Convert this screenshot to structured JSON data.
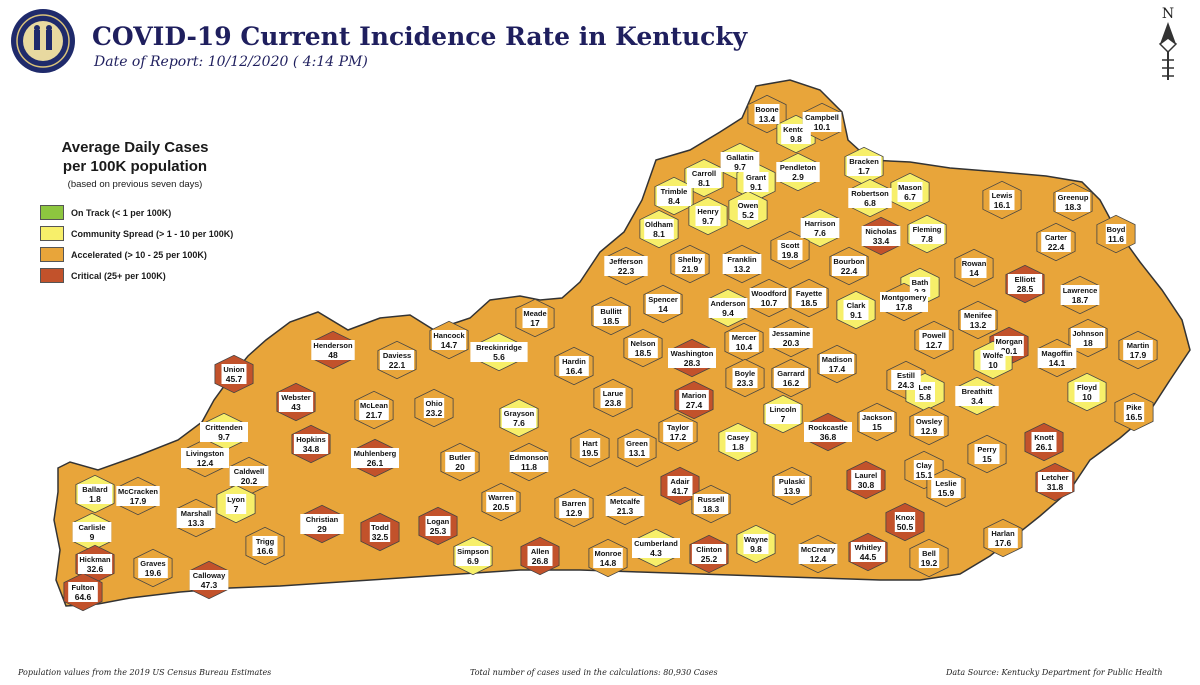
{
  "header": {
    "title": "COVID-19 Current Incidence Rate in Kentucky",
    "date": "Date of Report: 10/12/2020 ( 4:14 PM)"
  },
  "legend": {
    "title_line1": "Average Daily Cases",
    "title_line2": "per 100K population",
    "subtitle": "(based on previous seven days)",
    "items": [
      {
        "label": "On Track (< 1 per 100K)",
        "color": "#8dc63f"
      },
      {
        "label": "Community Spread (> 1 - 10 per 100K)",
        "color": "#f7ef6a"
      },
      {
        "label": "Accelerated (> 10 - 25 per 100K)",
        "color": "#e8a53a"
      },
      {
        "label": "Critical (25+ per 100K)",
        "color": "#c2522b"
      }
    ]
  },
  "north_arrow": "N",
  "counties": [
    {
      "name": "Boone",
      "value": "13.4"
    },
    {
      "name": "Kenton",
      "value": "9.8"
    },
    {
      "name": "Campbell",
      "value": "10.1"
    },
    {
      "name": "Gallatin",
      "value": "9.7"
    },
    {
      "name": "Carroll",
      "value": "8.1"
    },
    {
      "name": "Grant",
      "value": "9.1"
    },
    {
      "name": "Pendleton",
      "value": "2.9"
    },
    {
      "name": "Bracken",
      "value": "1.7"
    },
    {
      "name": "Mason",
      "value": "6.7"
    },
    {
      "name": "Robertson",
      "value": "6.8"
    },
    {
      "name": "Lewis",
      "value": "16.1"
    },
    {
      "name": "Greenup",
      "value": "18.3"
    },
    {
      "name": "Trimble",
      "value": "8.4"
    },
    {
      "name": "Henry",
      "value": "9.7"
    },
    {
      "name": "Owen",
      "value": "5.2"
    },
    {
      "name": "Oldham",
      "value": "8.1"
    },
    {
      "name": "Harrison",
      "value": "7.6"
    },
    {
      "name": "Nicholas",
      "value": "33.4"
    },
    {
      "name": "Fleming",
      "value": "7.8"
    },
    {
      "name": "Carter",
      "value": "22.4"
    },
    {
      "name": "Boyd",
      "value": "11.6"
    },
    {
      "name": "Jefferson",
      "value": "22.3"
    },
    {
      "name": "Shelby",
      "value": "21.9"
    },
    {
      "name": "Franklin",
      "value": "13.2"
    },
    {
      "name": "Scott",
      "value": "19.8"
    },
    {
      "name": "Bourbon",
      "value": "22.4"
    },
    {
      "name": "Bath",
      "value": "2.3"
    },
    {
      "name": "Rowan",
      "value": "14"
    },
    {
      "name": "Elliott",
      "value": "28.5"
    },
    {
      "name": "Lawrence",
      "value": "18.7"
    },
    {
      "name": "Meade",
      "value": "17"
    },
    {
      "name": "Spencer",
      "value": "14"
    },
    {
      "name": "Anderson",
      "value": "9.4"
    },
    {
      "name": "Woodford",
      "value": "10.7"
    },
    {
      "name": "Fayette",
      "value": "18.5"
    },
    {
      "name": "Clark",
      "value": "9.1"
    },
    {
      "name": "Montgomery",
      "value": "17.8"
    },
    {
      "name": "Menifee",
      "value": "13.2"
    },
    {
      "name": "Morgan",
      "value": "30.1"
    },
    {
      "name": "Johnson",
      "value": "18"
    },
    {
      "name": "Martin",
      "value": "17.9"
    },
    {
      "name": "Hancock",
      "value": "14.7"
    },
    {
      "name": "Breckinridge",
      "value": "5.6"
    },
    {
      "name": "Bullitt",
      "value": "18.5"
    },
    {
      "name": "Henderson",
      "value": "48"
    },
    {
      "name": "Daviess",
      "value": "22.1"
    },
    {
      "name": "Nelson",
      "value": "18.5"
    },
    {
      "name": "Mercer",
      "value": "10.4"
    },
    {
      "name": "Jessamine",
      "value": "20.3"
    },
    {
      "name": "Powell",
      "value": "12.7"
    },
    {
      "name": "Wolfe",
      "value": "10"
    },
    {
      "name": "Magoffin",
      "value": "14.1"
    },
    {
      "name": "Floyd",
      "value": "10"
    },
    {
      "name": "Pike",
      "value": "16.5"
    },
    {
      "name": "Union",
      "value": "45.7"
    },
    {
      "name": "Hardin",
      "value": "16.4"
    },
    {
      "name": "Washington",
      "value": "28.3"
    },
    {
      "name": "Boyle",
      "value": "23.3"
    },
    {
      "name": "Garrard",
      "value": "16.2"
    },
    {
      "name": "Madison",
      "value": "17.4"
    },
    {
      "name": "Estill",
      "value": "24.3"
    },
    {
      "name": "Lee",
      "value": "5.8"
    },
    {
      "name": "Breathitt",
      "value": "3.4"
    },
    {
      "name": "Webster",
      "value": "43"
    },
    {
      "name": "McLean",
      "value": "21.7"
    },
    {
      "name": "Ohio",
      "value": "23.2"
    },
    {
      "name": "Larue",
      "value": "23.8"
    },
    {
      "name": "Marion",
      "value": "27.4"
    },
    {
      "name": "Lincoln",
      "value": "7"
    },
    {
      "name": "Jackson",
      "value": "15"
    },
    {
      "name": "Owsley",
      "value": "12.9"
    },
    {
      "name": "Crittenden",
      "value": "9.7"
    },
    {
      "name": "Grayson",
      "value": "7.6"
    },
    {
      "name": "Taylor",
      "value": "17.2"
    },
    {
      "name": "Casey",
      "value": "1.8"
    },
    {
      "name": "Rockcastle",
      "value": "36.8"
    },
    {
      "name": "Knott",
      "value": "26.1"
    },
    {
      "name": "Perry",
      "value": "15"
    },
    {
      "name": "Hopkins",
      "value": "34.8"
    },
    {
      "name": "Hart",
      "value": "19.5"
    },
    {
      "name": "Green",
      "value": "13.1"
    },
    {
      "name": "Clay",
      "value": "15.1"
    },
    {
      "name": "Livingston",
      "value": "12.4"
    },
    {
      "name": "Muhlenberg",
      "value": "26.1"
    },
    {
      "name": "Butler",
      "value": "20"
    },
    {
      "name": "Edmonson",
      "value": "11.8"
    },
    {
      "name": "Caldwell",
      "value": "20.2"
    },
    {
      "name": "Adair",
      "value": "41.7"
    },
    {
      "name": "Pulaski",
      "value": "13.9"
    },
    {
      "name": "Laurel",
      "value": "30.8"
    },
    {
      "name": "Leslie",
      "value": "15.9"
    },
    {
      "name": "Letcher",
      "value": "31.8"
    },
    {
      "name": "Ballard",
      "value": "1.8"
    },
    {
      "name": "McCracken",
      "value": "17.9"
    },
    {
      "name": "Lyon",
      "value": "7"
    },
    {
      "name": "Marshall",
      "value": "13.3"
    },
    {
      "name": "Warren",
      "value": "20.5"
    },
    {
      "name": "Barren",
      "value": "12.9"
    },
    {
      "name": "Metcalfe",
      "value": "21.3"
    },
    {
      "name": "Russell",
      "value": "18.3"
    },
    {
      "name": "Knox",
      "value": "50.5"
    },
    {
      "name": "Carlisle",
      "value": "9"
    },
    {
      "name": "Christian",
      "value": "29"
    },
    {
      "name": "Todd",
      "value": "32.5"
    },
    {
      "name": "Logan",
      "value": "25.3"
    },
    {
      "name": "Trigg",
      "value": "16.6"
    },
    {
      "name": "Hickman",
      "value": "32.6"
    },
    {
      "name": "Graves",
      "value": "19.6"
    },
    {
      "name": "Calloway",
      "value": "47.3"
    },
    {
      "name": "Fulton",
      "value": "64.6"
    },
    {
      "name": "Simpson",
      "value": "6.9"
    },
    {
      "name": "Allen",
      "value": "26.8"
    },
    {
      "name": "Monroe",
      "value": "14.8"
    },
    {
      "name": "Cumberland",
      "value": "4.3"
    },
    {
      "name": "Clinton",
      "value": "25.2"
    },
    {
      "name": "Wayne",
      "value": "9.8"
    },
    {
      "name": "McCreary",
      "value": "12.4"
    },
    {
      "name": "Whitley",
      "value": "44.5"
    },
    {
      "name": "Bell",
      "value": "19.2"
    },
    {
      "name": "Harlan",
      "value": "17.6"
    }
  ],
  "footer": {
    "left": "Population values from the 2019 US Census Bureau Estimates",
    "center": "Total number of cases used in the calculations: 80,930 Cases",
    "right": "Data Source: Kentucky Department for Public Health"
  }
}
